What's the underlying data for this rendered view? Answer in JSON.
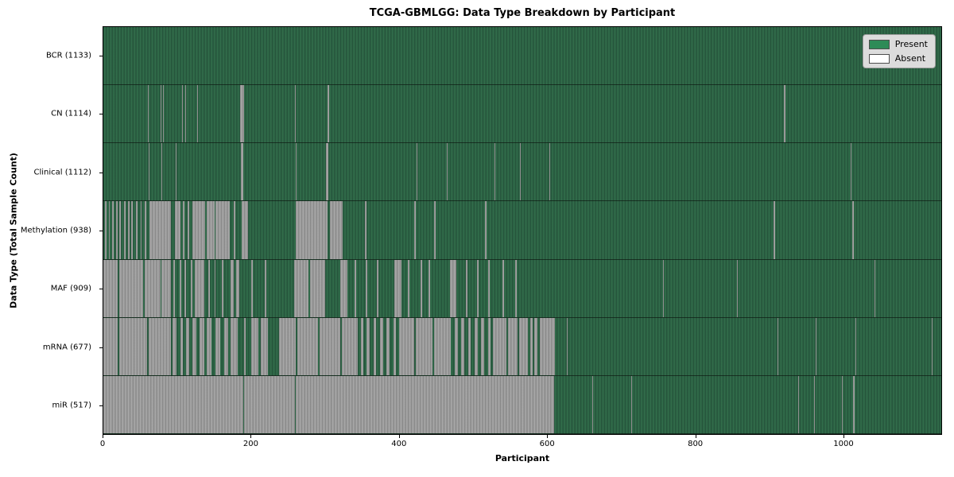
{
  "title": "TCGA-GBMLGG: Data Type Breakdown by Participant",
  "x_axis": {
    "label": "Participant",
    "ticks": [
      0,
      200,
      400,
      600,
      800,
      1000
    ]
  },
  "y_axis": {
    "label": "Data Type (Total Sample Count)"
  },
  "legend": {
    "items": [
      {
        "label": "Present",
        "color": "#2e8b57"
      },
      {
        "label": "Absent",
        "color": "#ffffff"
      }
    ]
  },
  "colors": {
    "present_base": "#2b5f43",
    "present_stripe_light": "#33704d",
    "present_stripe_dark": "#24523a",
    "absent_base": "#9f9f9f",
    "absent_stripe_light": "#ababab",
    "absent_stripe_dark": "#868686",
    "legend_bg": "#dcdcdc",
    "axis": "#000000"
  },
  "chart_data": {
    "type": "heatmap",
    "title": "TCGA-GBMLGG: Data Type Breakdown by Participant",
    "xlabel": "Participant",
    "ylabel": "Data Type (Total Sample Count)",
    "x_range": [
      0,
      1133
    ],
    "x_ticks": [
      0,
      200,
      400,
      600,
      800,
      1000
    ],
    "legend_entries": [
      "Present",
      "Absent"
    ],
    "legend_position": "upper right",
    "rows": [
      {
        "label": "BCR (1133)",
        "data_type": "BCR",
        "present_count": 1133,
        "absent_ranges": []
      },
      {
        "label": "CN (1114)",
        "data_type": "CN",
        "present_count": 1114,
        "absent_ranges": [
          [
            60,
            61
          ],
          [
            77,
            78
          ],
          [
            81,
            82
          ],
          [
            106,
            107
          ],
          [
            111,
            112
          ],
          [
            127,
            128
          ],
          [
            185,
            190
          ],
          [
            259,
            260
          ],
          [
            303,
            305
          ],
          [
            920,
            922
          ]
        ]
      },
      {
        "label": "Clinical (1112)",
        "data_type": "Clinical",
        "present_count": 1112,
        "absent_ranges": [
          [
            61,
            62
          ],
          [
            79,
            80
          ],
          [
            98,
            99
          ],
          [
            186,
            189
          ],
          [
            260,
            261
          ],
          [
            301,
            304
          ],
          [
            424,
            425
          ],
          [
            464,
            465
          ],
          [
            529,
            530
          ],
          [
            563,
            564
          ],
          [
            603,
            604
          ],
          [
            1010,
            1012
          ]
        ]
      },
      {
        "label": "Methylation (938)",
        "data_type": "Methylation",
        "present_count": 938,
        "absent_ranges": [
          [
            2,
            4
          ],
          [
            7,
            9
          ],
          [
            12,
            14
          ],
          [
            17,
            19
          ],
          [
            22,
            24
          ],
          [
            28,
            30
          ],
          [
            33,
            35
          ],
          [
            38,
            40
          ],
          [
            44,
            46
          ],
          [
            50,
            52
          ],
          [
            56,
            58
          ],
          [
            62,
            91
          ],
          [
            97,
            104
          ],
          [
            108,
            110
          ],
          [
            114,
            116
          ],
          [
            120,
            138
          ],
          [
            140,
            150
          ],
          [
            152,
            171
          ],
          [
            176,
            178
          ],
          [
            187,
            196
          ],
          [
            260,
            303
          ],
          [
            306,
            324
          ],
          [
            354,
            356
          ],
          [
            420,
            422
          ],
          [
            447,
            449
          ],
          [
            516,
            518
          ],
          [
            906,
            908
          ],
          [
            1013,
            1015
          ]
        ]
      },
      {
        "label": "MAF (909)",
        "data_type": "MAF",
        "present_count": 909,
        "absent_ranges": [
          [
            0,
            19
          ],
          [
            21,
            54
          ],
          [
            56,
            77
          ],
          [
            79,
            91
          ],
          [
            95,
            97
          ],
          [
            103,
            105
          ],
          [
            110,
            112
          ],
          [
            118,
            120
          ],
          [
            124,
            137
          ],
          [
            142,
            144
          ],
          [
            150,
            152
          ],
          [
            160,
            162
          ],
          [
            172,
            176
          ],
          [
            180,
            184
          ],
          [
            200,
            202
          ],
          [
            218,
            220
          ],
          [
            258,
            277
          ],
          [
            279,
            300
          ],
          [
            320,
            330
          ],
          [
            340,
            342
          ],
          [
            355,
            357
          ],
          [
            370,
            372
          ],
          [
            393,
            403
          ],
          [
            412,
            414
          ],
          [
            429,
            431
          ],
          [
            440,
            442
          ],
          [
            469,
            477
          ],
          [
            490,
            492
          ],
          [
            505,
            507
          ],
          [
            520,
            522
          ],
          [
            540,
            542
          ],
          [
            557,
            559
          ],
          [
            757,
            758
          ],
          [
            857,
            858
          ],
          [
            1043,
            1044
          ]
        ]
      },
      {
        "label": "mRNA (677)",
        "data_type": "mRNA",
        "present_count": 677,
        "absent_ranges": [
          [
            0,
            19
          ],
          [
            21,
            59
          ],
          [
            61,
            91
          ],
          [
            93,
            99
          ],
          [
            104,
            108
          ],
          [
            112,
            116
          ],
          [
            120,
            126
          ],
          [
            130,
            136
          ],
          [
            140,
            146
          ],
          [
            152,
            158
          ],
          [
            163,
            169
          ],
          [
            172,
            182
          ],
          [
            190,
            192
          ],
          [
            200,
            210
          ],
          [
            213,
            222
          ],
          [
            238,
            260
          ],
          [
            262,
            290
          ],
          [
            292,
            320
          ],
          [
            322,
            344
          ],
          [
            348,
            352
          ],
          [
            356,
            360
          ],
          [
            365,
            369
          ],
          [
            374,
            378
          ],
          [
            383,
            387
          ],
          [
            392,
            396
          ],
          [
            400,
            420
          ],
          [
            422,
            445
          ],
          [
            447,
            470
          ],
          [
            475,
            479
          ],
          [
            484,
            488
          ],
          [
            493,
            497
          ],
          [
            502,
            506
          ],
          [
            511,
            515
          ],
          [
            520,
            524
          ],
          [
            527,
            545
          ],
          [
            547,
            560
          ],
          [
            562,
            574
          ],
          [
            577,
            580
          ],
          [
            583,
            587
          ],
          [
            590,
            611
          ],
          [
            627,
            628
          ],
          [
            912,
            913
          ],
          [
            963,
            964
          ],
          [
            1017,
            1018
          ],
          [
            1120,
            1121
          ]
        ]
      },
      {
        "label": "miR (517)",
        "data_type": "miR",
        "present_count": 517,
        "absent_ranges": [
          [
            0,
            189
          ],
          [
            190,
            259
          ],
          [
            260,
            610
          ],
          [
            661,
            662
          ],
          [
            714,
            715
          ],
          [
            940,
            941
          ],
          [
            961,
            962
          ],
          [
            999,
            1000
          ],
          [
            1014,
            1016
          ]
        ]
      }
    ]
  }
}
